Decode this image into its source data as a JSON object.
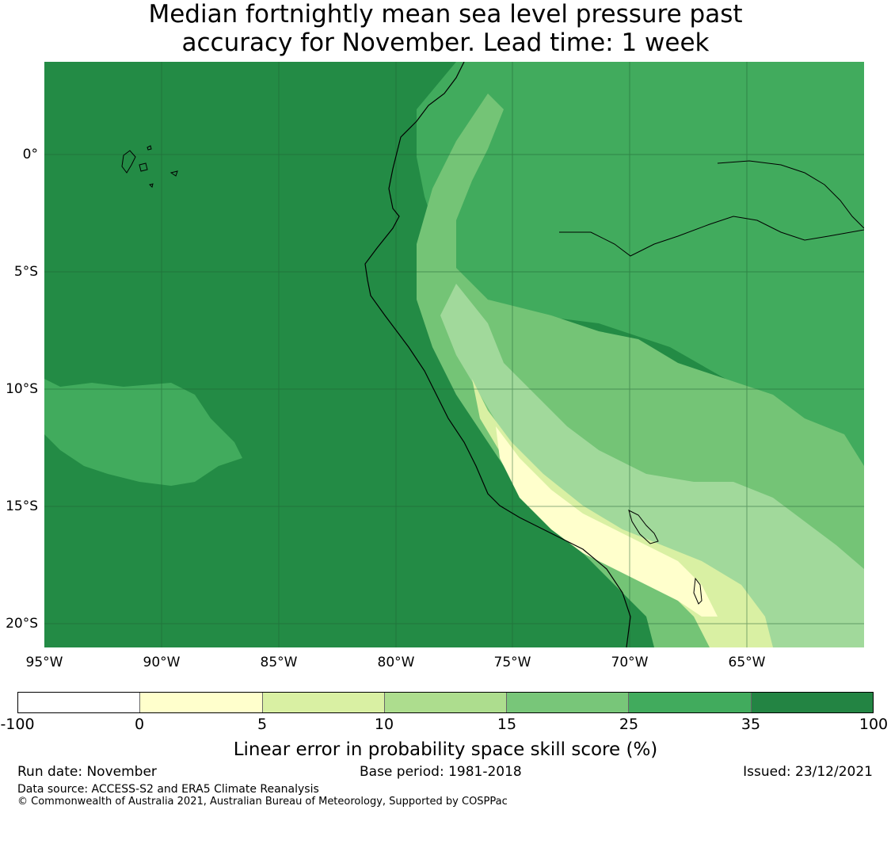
{
  "title": {
    "line1": "Median fortnightly mean sea level pressure past",
    "line2": "accuracy for November. Lead time: 1 week"
  },
  "map": {
    "lat_labels": [
      "0°",
      "5°S",
      "10°S",
      "15°S",
      "20°S"
    ],
    "lon_labels": [
      "95°W",
      "90°W",
      "85°W",
      "80°W",
      "75°W",
      "70°W",
      "65°W"
    ],
    "lat_range": [
      -21,
      4
    ],
    "lon_range": [
      -95,
      -60
    ],
    "colors": {
      "ocean_dark": "#238b45",
      "mid": "#41ab5d",
      "light": "#74c476",
      "lighter": "#a1d99b",
      "pale": "#d9f0a3",
      "palest": "#ffffcc",
      "coast": "#000000",
      "grid": "#1f5e33"
    }
  },
  "colorbar": {
    "ticks": [
      "-100",
      "0",
      "5",
      "10",
      "15",
      "25",
      "35",
      "100"
    ],
    "colors": [
      "#ffffff",
      "#ffffcc",
      "#d9f0a3",
      "#addd8e",
      "#78c679",
      "#41ab5d",
      "#238443"
    ],
    "label": "Linear error in probability space skill score (%)"
  },
  "footer": {
    "run_date": "Run date: November",
    "base_period": "Base period: 1981-2018",
    "issued": "Issued: 23/12/2021",
    "data_source": "Data source: ACCESS-S2 and ERA5 Climate Reanalysis",
    "copyright": "© Commonwealth of Australia 2021, Australian Bureau of Meteorology, Supported by COSPPac"
  }
}
